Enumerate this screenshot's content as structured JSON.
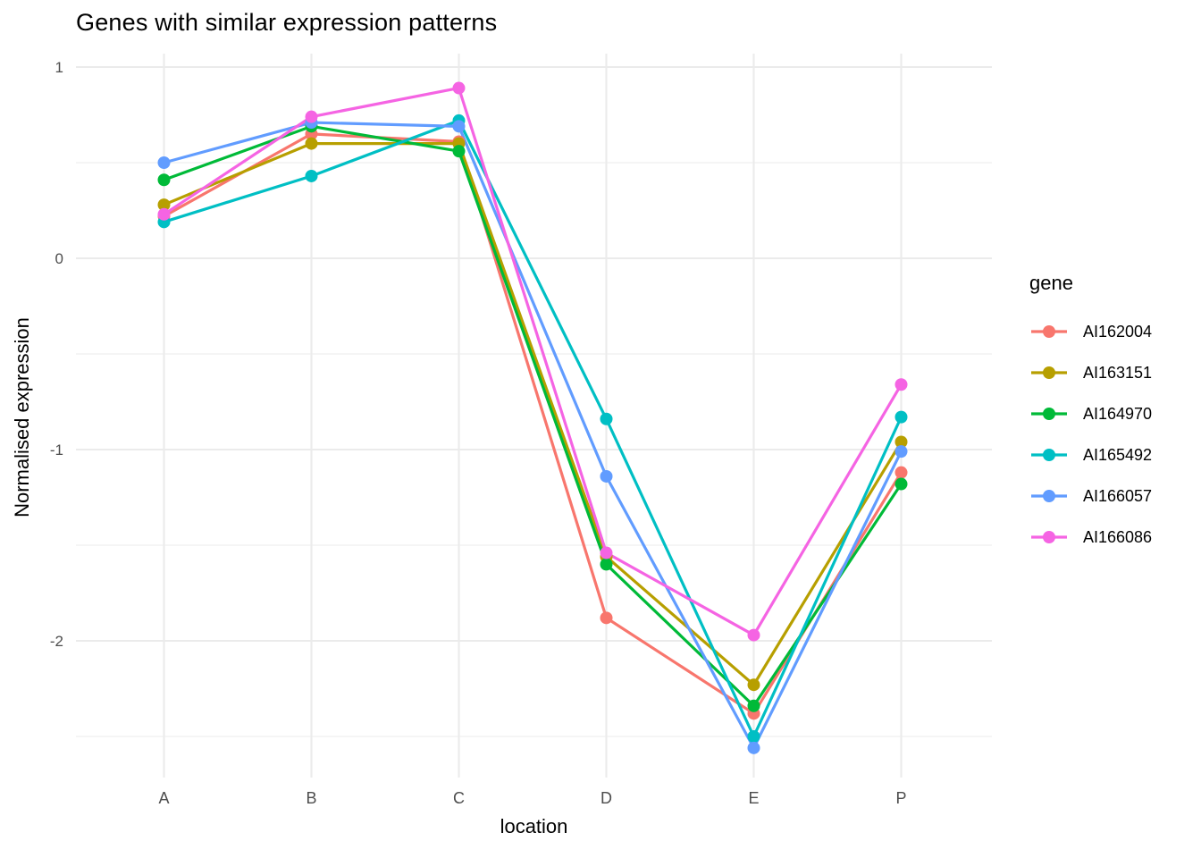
{
  "title": "Genes with similar expression patterns",
  "axes": {
    "x_label": "location",
    "y_label": "Normalised expression"
  },
  "legend": {
    "title": "gene"
  },
  "colors": {
    "background": "#FFFFFF",
    "grid": "#EBEBEB",
    "tick_label": "#4D4D4D",
    "text": "#000000"
  },
  "chart_data": {
    "type": "line",
    "title": "Genes with similar expression patterns",
    "xlabel": "location",
    "ylabel": "Normalised expression",
    "categories": [
      "A",
      "B",
      "C",
      "D",
      "E",
      "P"
    ],
    "y_major_ticks": [
      1,
      0,
      -1,
      -2
    ],
    "y_minor_ticks": [
      0.5,
      -0.5,
      -1.5,
      -2.5
    ],
    "ylim": [
      -2.72,
      1.07
    ],
    "grid": true,
    "legend_position": "right",
    "legend_title": "gene",
    "series": [
      {
        "name": "AI162004",
        "color": "#F8766D",
        "values": [
          0.22,
          0.65,
          0.61,
          -1.88,
          -2.38,
          -1.12
        ]
      },
      {
        "name": "AI163151",
        "color": "#B79F00",
        "values": [
          0.28,
          0.6,
          0.6,
          -1.56,
          -2.23,
          -0.96
        ]
      },
      {
        "name": "AI164970",
        "color": "#00BA38",
        "values": [
          0.41,
          0.69,
          0.56,
          -1.6,
          -2.34,
          -1.18
        ]
      },
      {
        "name": "AI165492",
        "color": "#00BFC4",
        "values": [
          0.19,
          0.43,
          0.72,
          -0.84,
          -2.5,
          -0.83
        ]
      },
      {
        "name": "AI166057",
        "color": "#619CFF",
        "values": [
          0.5,
          0.71,
          0.69,
          -1.14,
          -2.56,
          -1.01
        ]
      },
      {
        "name": "AI166086",
        "color": "#F564E3",
        "values": [
          0.23,
          0.74,
          0.89,
          -1.54,
          -1.97,
          -0.66
        ]
      }
    ]
  }
}
